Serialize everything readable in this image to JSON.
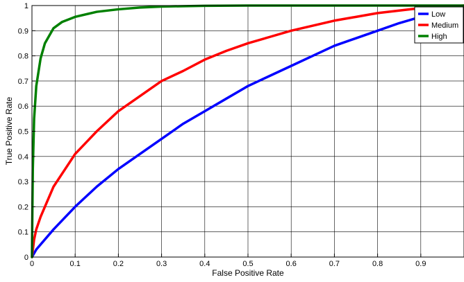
{
  "chart_data": {
    "type": "line",
    "title": "",
    "xlabel": "False Positive Rate",
    "ylabel": "True Positive Rate",
    "xlim": [
      0,
      1
    ],
    "ylim": [
      0,
      1
    ],
    "grid": true,
    "legend_position": "top-right",
    "x_ticks": [
      "0",
      "0.1",
      "0.2",
      "0.3",
      "0.4",
      "0.5",
      "0.6",
      "0.7",
      "0.8",
      "0.9"
    ],
    "y_ticks": [
      "0",
      "0.1",
      "0.2",
      "0.3",
      "0.4",
      "0.5",
      "0.6",
      "0.7",
      "0.8",
      "0.9",
      "1"
    ],
    "series": [
      {
        "name": "Low",
        "color": "#0000ff",
        "x": [
          0,
          0.01,
          0.05,
          0.1,
          0.15,
          0.2,
          0.25,
          0.3,
          0.35,
          0.4,
          0.45,
          0.5,
          0.55,
          0.6,
          0.65,
          0.7,
          0.75,
          0.8,
          0.85,
          0.9,
          0.95,
          1
        ],
        "y": [
          0,
          0.03,
          0.11,
          0.2,
          0.28,
          0.35,
          0.41,
          0.47,
          0.53,
          0.58,
          0.63,
          0.68,
          0.72,
          0.76,
          0.8,
          0.84,
          0.87,
          0.9,
          0.93,
          0.955,
          0.98,
          1
        ]
      },
      {
        "name": "Medium",
        "color": "#ff0000",
        "x": [
          0,
          0.005,
          0.01,
          0.02,
          0.05,
          0.1,
          0.15,
          0.2,
          0.25,
          0.3,
          0.35,
          0.4,
          0.45,
          0.5,
          0.55,
          0.6,
          0.65,
          0.7,
          0.75,
          0.8,
          0.85,
          0.9,
          0.95,
          1
        ],
        "y": [
          0,
          0.07,
          0.11,
          0.16,
          0.28,
          0.41,
          0.5,
          0.58,
          0.64,
          0.7,
          0.74,
          0.785,
          0.82,
          0.85,
          0.875,
          0.9,
          0.92,
          0.94,
          0.955,
          0.97,
          0.98,
          0.99,
          0.996,
          1
        ]
      },
      {
        "name": "High",
        "color": "#008000",
        "x": [
          0,
          0.002,
          0.005,
          0.01,
          0.02,
          0.03,
          0.05,
          0.07,
          0.1,
          0.15,
          0.2,
          0.25,
          0.3,
          0.4,
          0.5,
          0.6,
          0.8,
          1
        ],
        "y": [
          0,
          0.35,
          0.55,
          0.68,
          0.79,
          0.85,
          0.91,
          0.935,
          0.955,
          0.975,
          0.985,
          0.992,
          0.996,
          0.999,
          1,
          1,
          1,
          1
        ]
      }
    ]
  }
}
